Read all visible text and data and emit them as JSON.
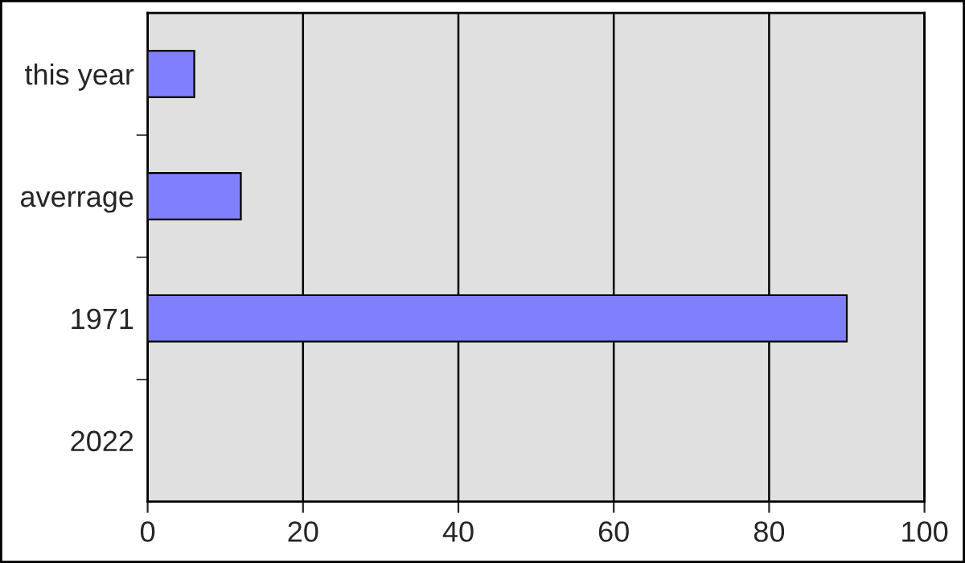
{
  "chart_data": {
    "type": "bar",
    "orientation": "horizontal",
    "categories": [
      "this year",
      "averrage",
      "1971",
      "2022"
    ],
    "values": [
      6,
      12,
      90,
      null
    ],
    "color": "#8080ff",
    "xlim": [
      0,
      100
    ],
    "xticks": [
      0,
      20,
      40,
      60,
      80,
      100
    ],
    "grid": "x",
    "legend": false
  }
}
